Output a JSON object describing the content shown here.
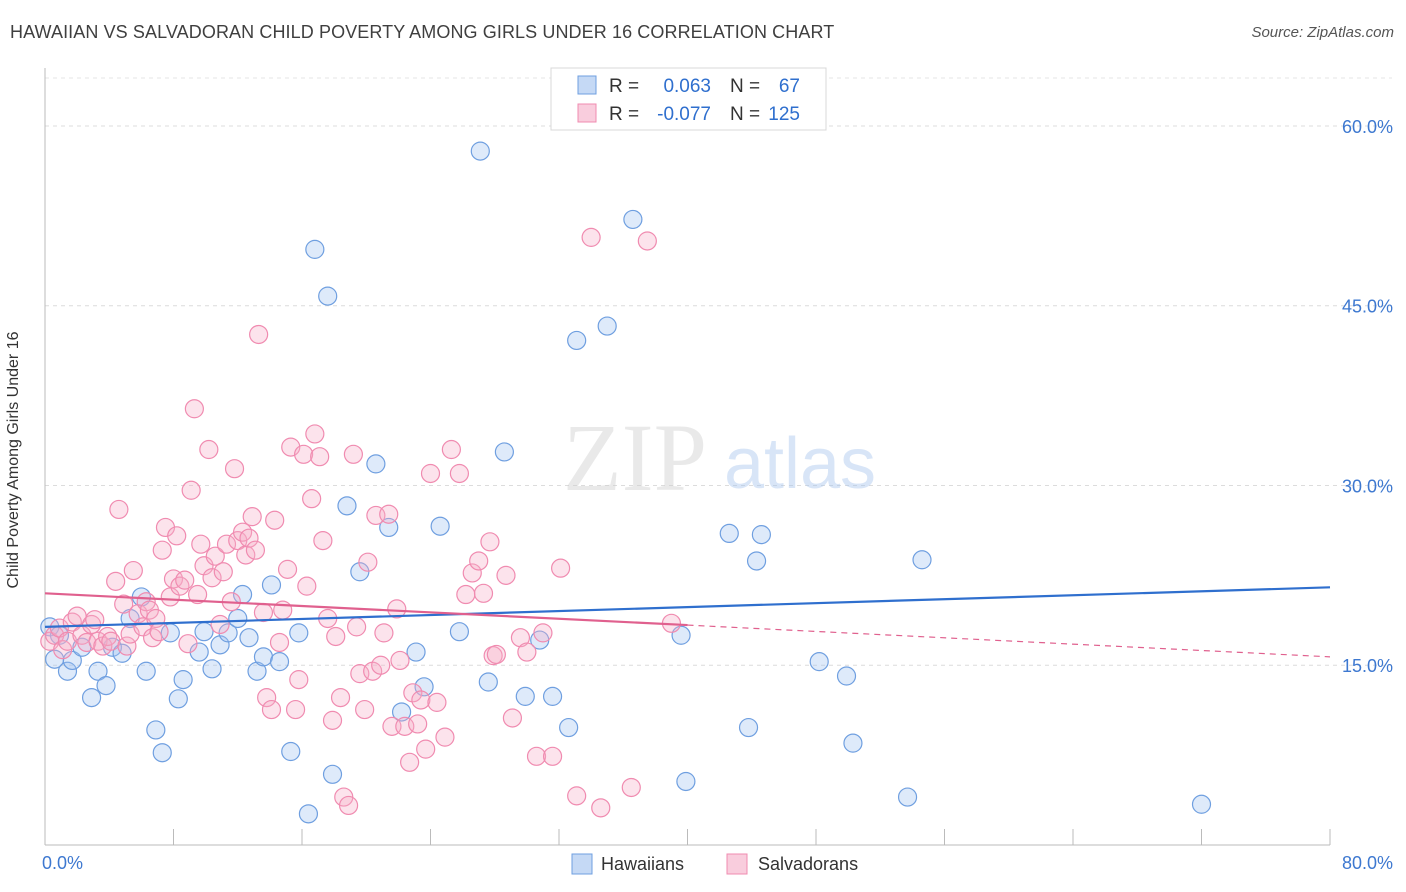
{
  "title": "HAWAIIAN VS SALVADORAN CHILD POVERTY AMONG GIRLS UNDER 16 CORRELATION CHART",
  "source": "Source: ZipAtlas.com",
  "watermark": {
    "zip": "ZIP",
    "atlas": "atlas"
  },
  "chart_data": {
    "type": "scatter",
    "ylabel": "Child Poverty Among Girls Under 16",
    "xlim": [
      0,
      80
    ],
    "ylim": [
      0,
      64
    ],
    "x_tick_labels": [
      "0.0%",
      "80.0%"
    ],
    "y_ticks": [
      15,
      30,
      45,
      60
    ],
    "y_tick_labels": [
      "15.0%",
      "30.0%",
      "45.0%",
      "60.0%"
    ],
    "grid": true,
    "legend_position": "bottom",
    "stats_box": [
      {
        "r_label": "R =",
        "r_value": "0.063",
        "n_label": "N =",
        "n_value": "67"
      },
      {
        "r_label": "R =",
        "r_value": "-0.077",
        "n_label": "N =",
        "n_value": "125"
      }
    ],
    "series": [
      {
        "name": "Hawaiians",
        "color": "#6f9fe0",
        "line_color": "#2f6fce",
        "trend": {
          "x": [
            0,
            80
          ],
          "y": [
            18.2,
            21.5
          ]
        },
        "points": [
          [
            0.3,
            18.2
          ],
          [
            0.6,
            15.5
          ],
          [
            0.9,
            17.5
          ],
          [
            1.4,
            14.5
          ],
          [
            1.7,
            15.4
          ],
          [
            2.3,
            16.5
          ],
          [
            2.9,
            12.3
          ],
          [
            3.3,
            14.5
          ],
          [
            3.8,
            13.3
          ],
          [
            4.2,
            16.5
          ],
          [
            4.8,
            16.0
          ],
          [
            5.3,
            18.9
          ],
          [
            6.0,
            20.7
          ],
          [
            6.3,
            14.5
          ],
          [
            6.9,
            9.6
          ],
          [
            7.3,
            7.7
          ],
          [
            7.8,
            17.7
          ],
          [
            8.3,
            12.2
          ],
          [
            8.6,
            13.8
          ],
          [
            9.6,
            16.1
          ],
          [
            9.9,
            17.8
          ],
          [
            10.4,
            14.7
          ],
          [
            10.9,
            16.7
          ],
          [
            11.4,
            17.7
          ],
          [
            12.0,
            18.9
          ],
          [
            12.3,
            20.9
          ],
          [
            12.7,
            17.3
          ],
          [
            13.2,
            14.5
          ],
          [
            13.6,
            15.7
          ],
          [
            14.1,
            21.7
          ],
          [
            14.6,
            15.3
          ],
          [
            15.3,
            7.8
          ],
          [
            15.8,
            17.7
          ],
          [
            16.4,
            2.6
          ],
          [
            16.8,
            49.7
          ],
          [
            17.6,
            45.8
          ],
          [
            17.9,
            5.9
          ],
          [
            18.8,
            28.3
          ],
          [
            19.6,
            22.8
          ],
          [
            20.6,
            31.8
          ],
          [
            21.4,
            26.5
          ],
          [
            22.2,
            11.1
          ],
          [
            23.1,
            16.1
          ],
          [
            23.6,
            13.2
          ],
          [
            24.6,
            26.6
          ],
          [
            25.8,
            17.8
          ],
          [
            27.1,
            57.9
          ],
          [
            27.6,
            13.6
          ],
          [
            28.6,
            32.8
          ],
          [
            29.9,
            12.4
          ],
          [
            30.8,
            17.1
          ],
          [
            31.6,
            12.4
          ],
          [
            32.6,
            9.8
          ],
          [
            33.1,
            42.1
          ],
          [
            35.0,
            43.3
          ],
          [
            36.6,
            52.2
          ],
          [
            39.6,
            17.5
          ],
          [
            39.9,
            5.3
          ],
          [
            42.6,
            26.0
          ],
          [
            43.8,
            9.8
          ],
          [
            44.3,
            23.7
          ],
          [
            44.6,
            25.9
          ],
          [
            48.2,
            15.3
          ],
          [
            49.9,
            14.1
          ],
          [
            50.3,
            8.5
          ],
          [
            53.7,
            4.0
          ],
          [
            54.6,
            23.8
          ],
          [
            72.0,
            3.4
          ]
        ]
      },
      {
        "name": "Salvadorans",
        "color": "#f08bb0",
        "line_color": "#e0608e",
        "trend": {
          "x": [
            0,
            80
          ],
          "y": [
            21.0,
            15.7
          ]
        },
        "trend_solid_until": 40,
        "points": [
          [
            0.3,
            17.0
          ],
          [
            0.6,
            17.5
          ],
          [
            0.9,
            18.1
          ],
          [
            1.1,
            16.3
          ],
          [
            1.4,
            17.0
          ],
          [
            1.7,
            18.6
          ],
          [
            2.0,
            19.1
          ],
          [
            2.3,
            17.5
          ],
          [
            2.6,
            16.9
          ],
          [
            2.9,
            18.4
          ],
          [
            3.1,
            18.8
          ],
          [
            3.3,
            17.0
          ],
          [
            3.6,
            16.6
          ],
          [
            3.9,
            17.4
          ],
          [
            4.1,
            17.0
          ],
          [
            4.4,
            22.0
          ],
          [
            4.6,
            28.0
          ],
          [
            4.9,
            20.1
          ],
          [
            5.1,
            16.6
          ],
          [
            5.3,
            17.6
          ],
          [
            5.5,
            22.9
          ],
          [
            5.8,
            19.3
          ],
          [
            6.1,
            18.2
          ],
          [
            6.3,
            20.3
          ],
          [
            6.5,
            19.6
          ],
          [
            6.7,
            17.3
          ],
          [
            6.9,
            18.9
          ],
          [
            7.1,
            17.8
          ],
          [
            7.3,
            24.6
          ],
          [
            7.5,
            26.5
          ],
          [
            7.8,
            20.7
          ],
          [
            8.0,
            22.2
          ],
          [
            8.2,
            25.8
          ],
          [
            8.4,
            21.6
          ],
          [
            8.7,
            22.1
          ],
          [
            8.9,
            16.8
          ],
          [
            9.1,
            29.6
          ],
          [
            9.3,
            36.4
          ],
          [
            9.5,
            20.9
          ],
          [
            9.7,
            25.1
          ],
          [
            9.9,
            23.3
          ],
          [
            10.2,
            33.0
          ],
          [
            10.4,
            22.3
          ],
          [
            10.6,
            24.1
          ],
          [
            10.9,
            18.4
          ],
          [
            11.1,
            22.8
          ],
          [
            11.3,
            25.1
          ],
          [
            11.6,
            20.3
          ],
          [
            11.8,
            31.4
          ],
          [
            12.0,
            25.4
          ],
          [
            12.3,
            26.1
          ],
          [
            12.5,
            24.2
          ],
          [
            12.7,
            25.6
          ],
          [
            12.9,
            27.4
          ],
          [
            13.1,
            24.6
          ],
          [
            13.3,
            42.6
          ],
          [
            13.6,
            19.4
          ],
          [
            13.8,
            12.3
          ],
          [
            14.1,
            11.3
          ],
          [
            14.3,
            27.1
          ],
          [
            14.6,
            16.9
          ],
          [
            14.8,
            19.6
          ],
          [
            15.1,
            23.0
          ],
          [
            15.3,
            33.2
          ],
          [
            15.6,
            11.3
          ],
          [
            15.8,
            13.8
          ],
          [
            16.1,
            32.6
          ],
          [
            16.3,
            21.6
          ],
          [
            16.6,
            28.9
          ],
          [
            16.8,
            34.3
          ],
          [
            17.1,
            32.4
          ],
          [
            17.3,
            25.4
          ],
          [
            17.6,
            18.9
          ],
          [
            17.9,
            10.4
          ],
          [
            18.1,
            17.4
          ],
          [
            18.4,
            12.3
          ],
          [
            18.6,
            4.0
          ],
          [
            18.9,
            3.3
          ],
          [
            19.2,
            32.6
          ],
          [
            19.4,
            18.2
          ],
          [
            19.6,
            14.3
          ],
          [
            19.9,
            11.3
          ],
          [
            20.1,
            23.6
          ],
          [
            20.4,
            14.5
          ],
          [
            20.6,
            27.5
          ],
          [
            20.9,
            15.0
          ],
          [
            21.1,
            17.7
          ],
          [
            21.4,
            27.6
          ],
          [
            21.6,
            9.9
          ],
          [
            21.9,
            19.7
          ],
          [
            22.1,
            15.4
          ],
          [
            22.4,
            9.9
          ],
          [
            22.7,
            6.9
          ],
          [
            22.9,
            12.7
          ],
          [
            23.2,
            10.1
          ],
          [
            23.4,
            12.1
          ],
          [
            23.7,
            8.0
          ],
          [
            24.0,
            31.0
          ],
          [
            24.4,
            11.9
          ],
          [
            24.9,
            9.0
          ],
          [
            25.3,
            33.0
          ],
          [
            25.8,
            31.0
          ],
          [
            26.2,
            20.9
          ],
          [
            26.6,
            22.7
          ],
          [
            27.0,
            23.7
          ],
          [
            27.3,
            21.0
          ],
          [
            27.7,
            25.3
          ],
          [
            27.9,
            15.8
          ],
          [
            28.1,
            15.9
          ],
          [
            28.7,
            22.5
          ],
          [
            29.1,
            10.6
          ],
          [
            29.6,
            17.3
          ],
          [
            30.0,
            16.1
          ],
          [
            30.6,
            7.4
          ],
          [
            31.0,
            17.7
          ],
          [
            31.6,
            7.4
          ],
          [
            32.1,
            23.1
          ],
          [
            33.1,
            4.1
          ],
          [
            34.6,
            3.1
          ],
          [
            34.0,
            50.7
          ],
          [
            36.5,
            4.8
          ],
          [
            37.5,
            50.4
          ],
          [
            39.0,
            18.5
          ]
        ]
      }
    ]
  }
}
